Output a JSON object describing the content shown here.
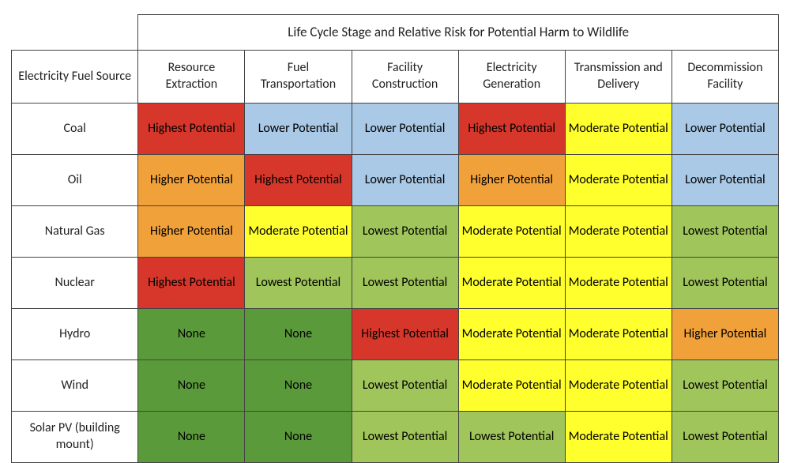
{
  "table": {
    "title": "Life Cycle Stage and Relative Risk for Potential Harm to Wildlife",
    "row_header_title": "Electricity Fuel Source",
    "columns": [
      "Resource Extraction",
      "Fuel Transportation",
      "Facility Construction",
      "Electricity Generation",
      "Transmission and Delivery",
      "Decommission Facility"
    ],
    "row_labels": [
      "Coal",
      "Oil",
      "Natural Gas",
      "Nuclear",
      "Hydro",
      "Wind",
      "Solar PV (building mount)"
    ],
    "cells": [
      [
        {
          "label": "Highest Potential",
          "bg": "#d7372b",
          "fg": "#000000"
        },
        {
          "label": "Lower Potential",
          "bg": "#a9c9e6",
          "fg": "#000000"
        },
        {
          "label": "Lower Potential",
          "bg": "#a9c9e6",
          "fg": "#000000"
        },
        {
          "label": "Highest Potential",
          "bg": "#d7372b",
          "fg": "#000000"
        },
        {
          "label": "Moderate Potential",
          "bg": "#ffff2e",
          "fg": "#000000"
        },
        {
          "label": "Lower Potential",
          "bg": "#a9c9e6",
          "fg": "#000000"
        }
      ],
      [
        {
          "label": "Higher Potential",
          "bg": "#f1a13a",
          "fg": "#000000"
        },
        {
          "label": "Highest Potential",
          "bg": "#d7372b",
          "fg": "#000000"
        },
        {
          "label": "Lower Potential",
          "bg": "#a9c9e6",
          "fg": "#000000"
        },
        {
          "label": "Higher Potential",
          "bg": "#f1a13a",
          "fg": "#000000"
        },
        {
          "label": "Moderate Potential",
          "bg": "#ffff2e",
          "fg": "#000000"
        },
        {
          "label": "Lower Potential",
          "bg": "#a9c9e6",
          "fg": "#000000"
        }
      ],
      [
        {
          "label": "Higher Potential",
          "bg": "#f1a13a",
          "fg": "#000000"
        },
        {
          "label": "Moderate Potential",
          "bg": "#ffff2e",
          "fg": "#000000"
        },
        {
          "label": "Lowest Potential",
          "bg": "#a0c55a",
          "fg": "#000000"
        },
        {
          "label": "Moderate Potential",
          "bg": "#ffff2e",
          "fg": "#000000"
        },
        {
          "label": "Moderate Potential",
          "bg": "#ffff2e",
          "fg": "#000000"
        },
        {
          "label": "Lowest Potential",
          "bg": "#a0c55a",
          "fg": "#000000"
        }
      ],
      [
        {
          "label": "Highest Potential",
          "bg": "#d7372b",
          "fg": "#000000"
        },
        {
          "label": "Lowest Potential",
          "bg": "#a0c55a",
          "fg": "#000000"
        },
        {
          "label": "Lowest Potential",
          "bg": "#a0c55a",
          "fg": "#000000"
        },
        {
          "label": "Moderate Potential",
          "bg": "#ffff2e",
          "fg": "#000000"
        },
        {
          "label": "Moderate Potential",
          "bg": "#ffff2e",
          "fg": "#000000"
        },
        {
          "label": "Lowest Potential",
          "bg": "#a0c55a",
          "fg": "#000000"
        }
      ],
      [
        {
          "label": "None",
          "bg": "#5a9a3a",
          "fg": "#000000"
        },
        {
          "label": "None",
          "bg": "#5a9a3a",
          "fg": "#000000"
        },
        {
          "label": "Highest Potential",
          "bg": "#d7372b",
          "fg": "#000000"
        },
        {
          "label": "Moderate Potential",
          "bg": "#ffff2e",
          "fg": "#000000"
        },
        {
          "label": "Moderate Potential",
          "bg": "#ffff2e",
          "fg": "#000000"
        },
        {
          "label": "Higher Potential",
          "bg": "#f1a13a",
          "fg": "#000000"
        }
      ],
      [
        {
          "label": "None",
          "bg": "#5a9a3a",
          "fg": "#000000"
        },
        {
          "label": "None",
          "bg": "#5a9a3a",
          "fg": "#000000"
        },
        {
          "label": "Lowest Potential",
          "bg": "#a0c55a",
          "fg": "#000000"
        },
        {
          "label": "Moderate Potential",
          "bg": "#ffff2e",
          "fg": "#000000"
        },
        {
          "label": "Moderate Potential",
          "bg": "#ffff2e",
          "fg": "#000000"
        },
        {
          "label": "Lowest Potential",
          "bg": "#a0c55a",
          "fg": "#000000"
        }
      ],
      [
        {
          "label": "None",
          "bg": "#5a9a3a",
          "fg": "#000000"
        },
        {
          "label": "None",
          "bg": "#5a9a3a",
          "fg": "#000000"
        },
        {
          "label": "Lowest Potential",
          "bg": "#a0c55a",
          "fg": "#000000"
        },
        {
          "label": "Lowest Potential",
          "bg": "#a0c55a",
          "fg": "#000000"
        },
        {
          "label": "Moderate Potential",
          "bg": "#ffff2e",
          "fg": "#000000"
        },
        {
          "label": "Lowest Potential",
          "bg": "#a0c55a",
          "fg": "#000000"
        }
      ]
    ],
    "column_widths_pct": [
      16.5,
      13.9,
      13.9,
      13.9,
      13.9,
      13.9,
      13.9
    ],
    "title_fontsize": 17,
    "header_fontsize": 16,
    "cell_fontsize": 16,
    "border_color": "#444444",
    "background_color": "#ffffff"
  }
}
